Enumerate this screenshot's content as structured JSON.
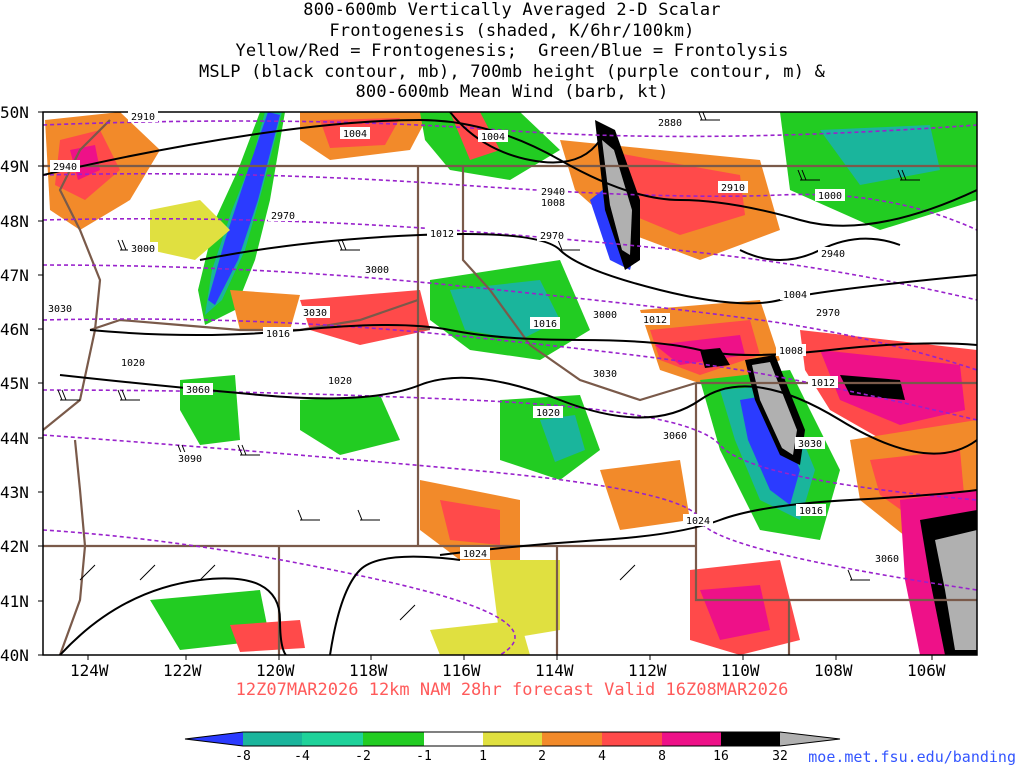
{
  "title_lines": [
    "800-600mb Vertically Averaged 2-D Scalar",
    "Frontogenesis (shaded, K/6hr/100km)",
    "Yellow/Red = Frontogenesis;  Green/Blue = Frontolysis",
    "MSLP (black contour, mb), 700mb height (purple contour, m) &",
    "800-600mb Mean Wind (barb, kt)"
  ],
  "caption": "12Z07MAR2026 12km NAM 28hr forecast Valid 16Z08MAR2026",
  "credit": "moe.met.fsu.edu/banding",
  "lat_labels": [
    "50N",
    "49N",
    "48N",
    "47N",
    "46N",
    "45N",
    "44N",
    "43N",
    "42N",
    "41N",
    "40N"
  ],
  "lon_labels": [
    "124W",
    "122W",
    "120W",
    "118W",
    "116W",
    "114W",
    "112W",
    "110W",
    "108W",
    "106W"
  ],
  "legend": {
    "labels": [
      "-8",
      "-4",
      "-2",
      "-1",
      "1",
      "2",
      "4",
      "8",
      "16",
      "32"
    ],
    "colors": [
      "#2b3bff",
      "#1ab59c",
      "#1fd29a",
      "#22cc22",
      "#ffffff",
      "#e0e040",
      "#f28a2a",
      "#ff4a4a",
      "#ee1188",
      "#000000",
      "#b0b0b0"
    ]
  },
  "colors": {
    "mslp": "#000000",
    "height": "#9922cc",
    "border": "#7a5a4a",
    "caption": "#ff5a5a",
    "credit": "#3355ff"
  },
  "mslp_labels": [
    "1004",
    "1004",
    "1008",
    "1012",
    "1016",
    "1016",
    "1020",
    "1020",
    "1020",
    "1008",
    "1012",
    "1016",
    "1024",
    "1024",
    "1000",
    "1004",
    "1012"
  ],
  "height_labels": [
    "2910",
    "2940",
    "2940",
    "2970",
    "3000",
    "3030",
    "3030",
    "3060",
    "3090",
    "2880",
    "2910",
    "2940",
    "2970",
    "2970",
    "3000",
    "3000",
    "3030",
    "3030",
    "3060",
    "3060"
  ]
}
